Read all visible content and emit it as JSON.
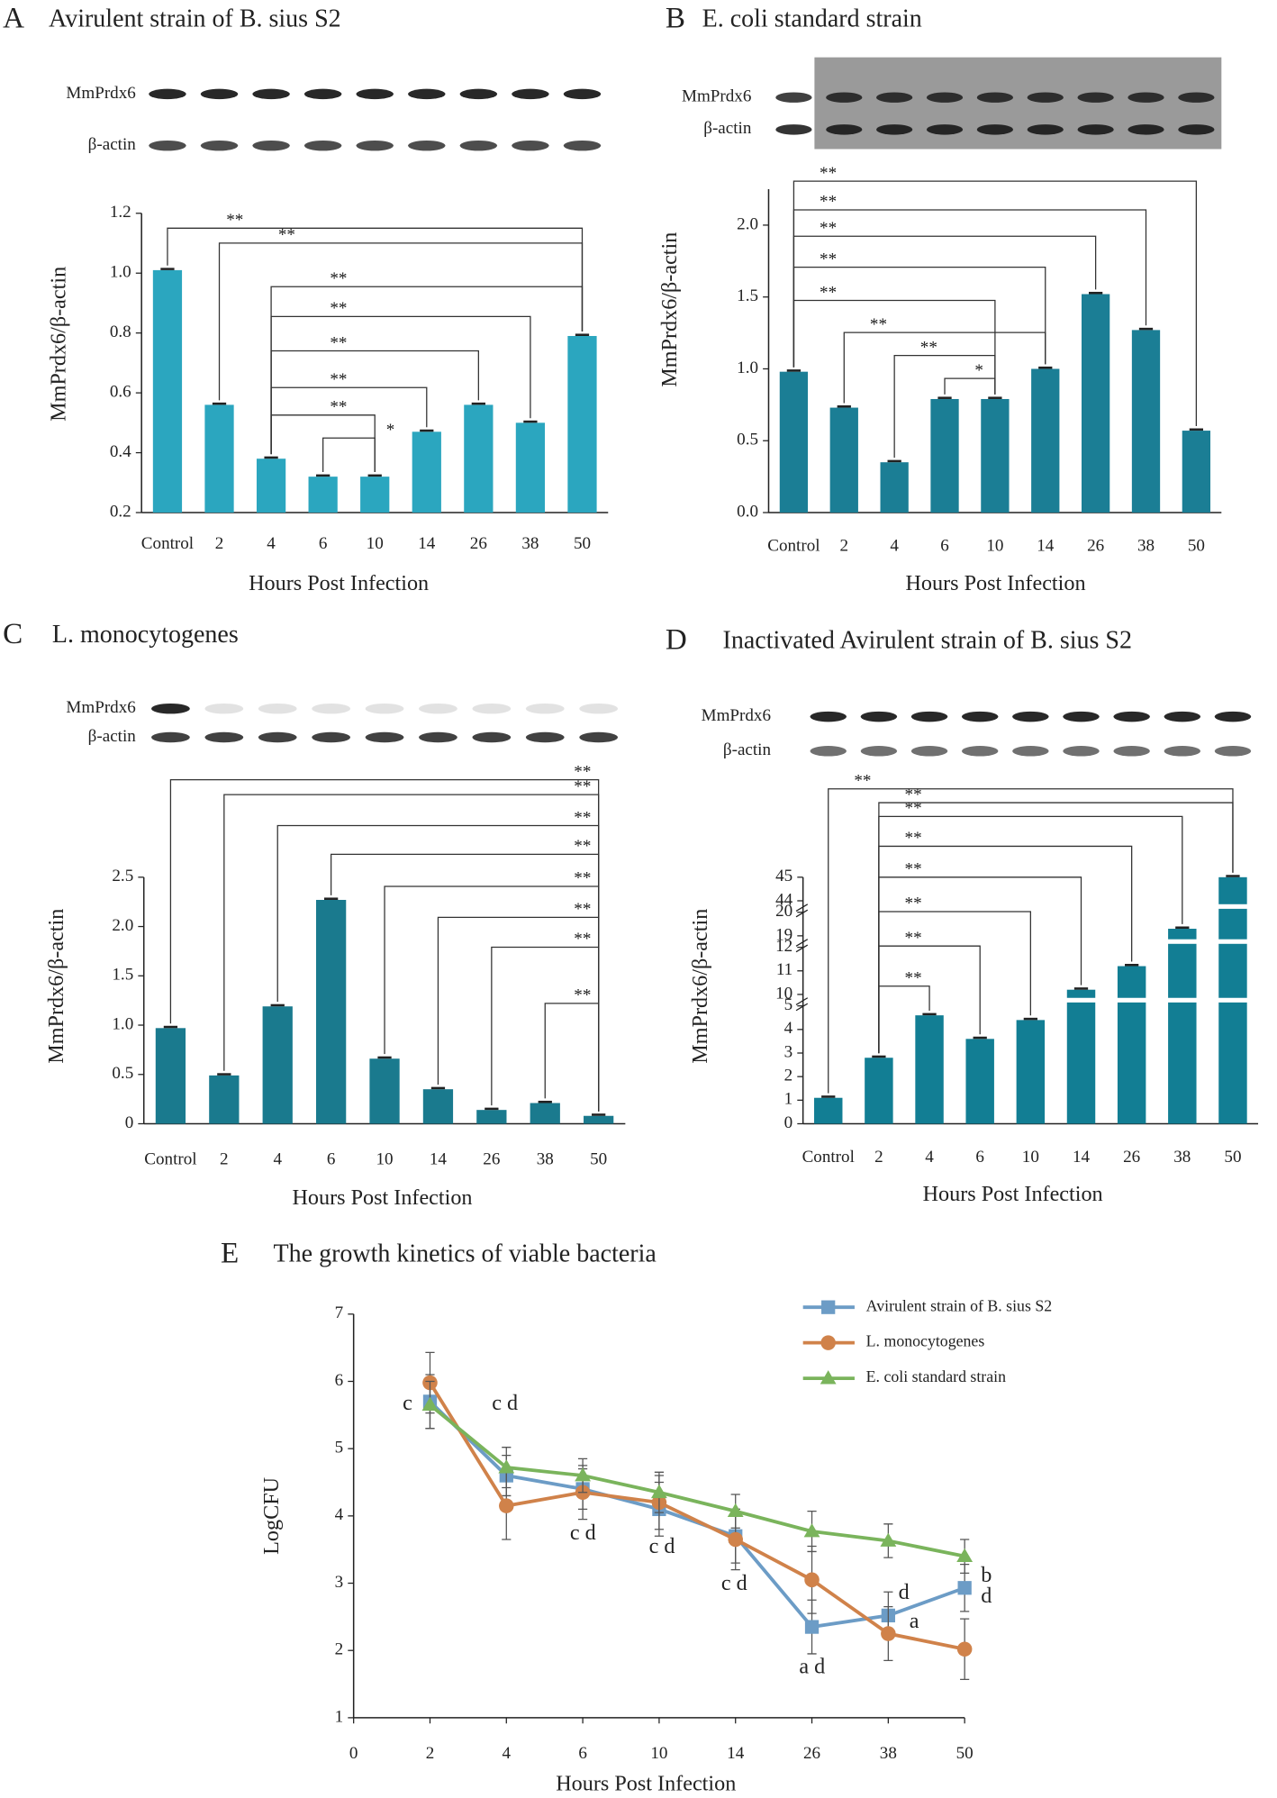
{
  "chart_data": [
    {
      "type": "bar",
      "panel": "A",
      "title": "Avirulent strain of B. sius S2",
      "blot_labels": [
        "MmPrdx6",
        "β-actin"
      ],
      "categories": [
        "Control",
        "2",
        "4",
        "6",
        "10",
        "14",
        "26",
        "38",
        "50"
      ],
      "values": [
        1.01,
        0.56,
        0.38,
        0.32,
        0.32,
        0.47,
        0.56,
        0.5,
        0.79
      ],
      "color": "#2ba6bf",
      "ylim": [
        0.2,
        1.2
      ],
      "yticks": [
        0.2,
        0.4,
        0.6,
        0.8,
        {
          "value": 1,
          "label": "1.0"
        },
        1.2
      ],
      "x_label": "Hours Post Infection",
      "y_label": "MmPrdx6/β-actin",
      "annotations": [
        "**",
        "**",
        "**",
        "**",
        "**",
        "**",
        "**",
        "*"
      ]
    },
    {
      "type": "bar",
      "panel": "B",
      "title": "E. coli standard strain",
      "blot_labels": [
        "MmPrdx6",
        "β-actin"
      ],
      "categories": [
        "Control",
        "2",
        "4",
        "6",
        "10",
        "14",
        "26",
        "38",
        "50"
      ],
      "values": [
        0.98,
        0.73,
        0.35,
        0.79,
        0.79,
        1.0,
        1.52,
        1.27,
        0.57
      ],
      "color": "#1b7e95",
      "ylim": [
        0,
        2.25
      ],
      "yticks": [
        {
          "value": 0,
          "label": "0.0"
        },
        0.5,
        {
          "value": 1,
          "label": "1.0"
        },
        1.5,
        {
          "value": 2,
          "label": "2.0"
        }
      ],
      "x_label": "Hours Post Infection",
      "y_label": "MmPrdx6/β-actin",
      "annotations": [
        "**",
        "**",
        "**",
        "**",
        "**",
        "**",
        "**",
        "*"
      ]
    },
    {
      "type": "bar",
      "panel": "C",
      "title": "L. monocytogenes",
      "blot_labels": [
        "MmPrdx6",
        "β-actin"
      ],
      "categories": [
        "Control",
        "2",
        "4",
        "6",
        "10",
        "14",
        "26",
        "38",
        "50"
      ],
      "values": [
        0.97,
        0.49,
        1.19,
        2.27,
        0.66,
        0.35,
        0.14,
        0.21,
        0.08
      ],
      "color": "#1a7a8e",
      "ylim": [
        0,
        2.5
      ],
      "yticks": [
        0,
        0.5,
        {
          "value": 1,
          "label": "1.0"
        },
        1.5,
        {
          "value": 2,
          "label": "2.0"
        },
        2.5
      ],
      "x_label": "Hours Post Infection",
      "y_label": "MmPrdx6/β-actin",
      "annotations": [
        "**",
        "**",
        "**",
        "**",
        "**",
        "**",
        "**",
        "**"
      ]
    },
    {
      "type": "bar",
      "panel": "D",
      "title": "Inactivated Avirulent strain of B. sius S2",
      "blot_labels": [
        "MmPrdx6",
        "β-actin"
      ],
      "categories": [
        "Control",
        "2",
        "4",
        "6",
        "10",
        "14",
        "26",
        "38",
        "50"
      ],
      "values": [
        1.1,
        2.8,
        4.6,
        3.6,
        4.4,
        10.2,
        11.2,
        19.3,
        45
      ],
      "color": "#127e94",
      "ylim": [
        0,
        45
      ],
      "axis_breaks": [
        [
          0,
          5
        ],
        [
          10,
          12
        ],
        [
          19,
          20
        ],
        [
          44,
          45
        ]
      ],
      "yticks": [
        0,
        1,
        2,
        3,
        4,
        5,
        10,
        11,
        12,
        19,
        20,
        44,
        45
      ],
      "x_label": "Hours Post Infection",
      "y_label": "MmPrdx6/β-actin",
      "annotations": [
        "**",
        "**",
        "**",
        "**",
        "**",
        "**",
        "**",
        "**"
      ]
    },
    {
      "type": "line",
      "panel": "E",
      "title": "The growth kinetics of viable bacteria",
      "categories": [
        "0",
        "2",
        "4",
        "6",
        "10",
        "14",
        "26",
        "38",
        "50"
      ],
      "ylim": [
        1,
        7
      ],
      "yticks": [
        1,
        2,
        3,
        4,
        5,
        6,
        7
      ],
      "x_label": "Hours Post Infection",
      "y_label": "LogCFU",
      "series": [
        {
          "name": "Avirulent strain of B. sius S2",
          "color": "#6c9cc6",
          "marker": "square",
          "values": [
            null,
            5.7,
            4.6,
            4.4,
            4.1,
            3.7,
            2.35,
            2.52,
            2.93
          ],
          "errors": [
            null,
            0.4,
            0.3,
            0.3,
            0.4,
            0.4,
            0.4,
            0.35,
            0.35
          ]
        },
        {
          "name": "L. monocytogenes",
          "color": "#d0824a",
          "marker": "circle",
          "values": [
            null,
            5.98,
            4.15,
            4.35,
            4.2,
            3.65,
            3.05,
            2.25,
            2.02
          ],
          "errors": [
            null,
            0.45,
            0.5,
            0.4,
            0.4,
            0.45,
            0.5,
            0.4,
            0.45
          ]
        },
        {
          "name": "E. coli standard strain",
          "color": "#7ab45c",
          "marker": "triangle",
          "values": [
            null,
            5.65,
            4.72,
            4.6,
            4.35,
            4.07,
            3.77,
            3.63,
            3.4
          ],
          "errors": [
            null,
            0.35,
            0.3,
            0.25,
            0.3,
            0.25,
            0.3,
            0.25,
            0.25
          ]
        }
      ],
      "annotations": [
        "c",
        "c d",
        "c d",
        "c d",
        "c d",
        "a d",
        "d",
        "a",
        "b",
        "d"
      ]
    }
  ]
}
